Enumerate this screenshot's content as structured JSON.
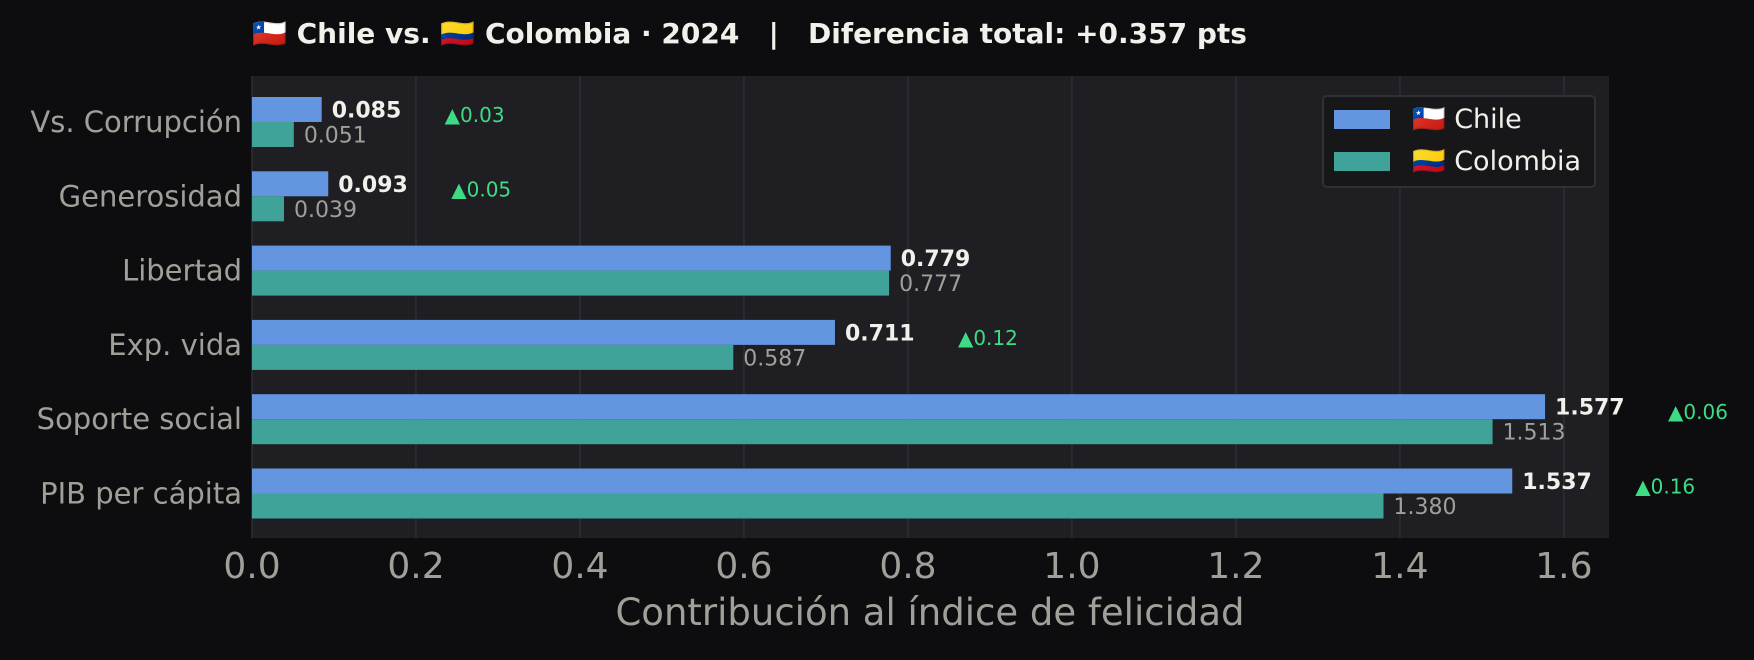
{
  "chart_data": {
    "type": "bar",
    "orientation": "horizontal",
    "title": "🇨🇱 Chile vs. 🇨🇴 Colombia · 2024   |   Diferencia total: +0.357 pts",
    "xlabel": "Contribución al índice de felicidad",
    "ylabel": "",
    "xlim": [
      0,
      1.655
    ],
    "xticks": [
      0.0,
      0.2,
      0.4,
      0.6,
      0.8,
      1.0,
      1.2,
      1.4,
      1.6
    ],
    "xtick_labels": [
      "0.0",
      "0.2",
      "0.4",
      "0.6",
      "0.8",
      "1.0",
      "1.2",
      "1.4",
      "1.6"
    ],
    "grid": "vertical",
    "legend_position": "lower-right",
    "categories": [
      "Vs. Corrupción",
      "Generosidad",
      "Libertad",
      "Exp. vida",
      "Soporte social",
      "PIB per cápita"
    ],
    "series": [
      {
        "name": "🇨🇱 Chile",
        "color": "#6495e0",
        "values": [
          0.085,
          0.093,
          0.779,
          0.711,
          1.577,
          1.537
        ],
        "labels": [
          "0.085",
          "0.093",
          "0.779",
          "0.711",
          "1.577",
          "1.537"
        ]
      },
      {
        "name": "🇨🇴 Colombia",
        "color": "#40a39a",
        "values": [
          0.051,
          0.039,
          0.777,
          0.587,
          1.513,
          1.38
        ],
        "labels": [
          "0.051",
          "0.039",
          "0.777",
          "0.587",
          "1.513",
          "1.380"
        ]
      }
    ],
    "differences": [
      "▲0.03",
      "▲0.05",
      "",
      "▲0.12",
      "▲0.06",
      "▲0.16"
    ],
    "difference_color": "#3ddc84"
  }
}
